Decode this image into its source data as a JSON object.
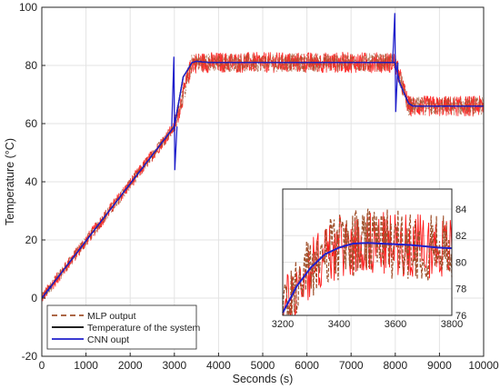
{
  "chart_data": {
    "type": "line",
    "xlabel": "Seconds (s)",
    "ylabel": "Temperature (°C)",
    "xlim": [
      0,
      10000
    ],
    "ylim": [
      -20,
      100
    ],
    "xticks": [
      "0",
      "1000",
      "2000",
      "3000",
      "4000",
      "5000",
      "6000",
      "7000",
      "8000",
      "9000",
      "10000"
    ],
    "yticks": [
      "-20",
      "0",
      "20",
      "40",
      "60",
      "80",
      "100"
    ],
    "grid": true,
    "legend_position": "bottom-left",
    "series": [
      {
        "name": "MLP output",
        "style": "dashed",
        "color": "#a0522d",
        "noise_color": "#ff1a1a",
        "x": [
          0,
          3000,
          3400,
          8000,
          8300,
          10000
        ],
        "y": [
          0,
          59,
          81,
          81,
          66,
          66
        ]
      },
      {
        "name": "Temperature of the system",
        "style": "solid",
        "color": "#000000",
        "x": [
          0,
          3000,
          3200,
          3400,
          3500,
          3800,
          8000,
          8100,
          8300,
          8400,
          10000
        ],
        "y": [
          0,
          59,
          76,
          81,
          81.4,
          81,
          81,
          74,
          67,
          66,
          66
        ]
      },
      {
        "name": "CNN oupt",
        "style": "solid",
        "color": "#1f1fcc",
        "x": [
          0,
          3000,
          3200,
          3400,
          3500,
          3800,
          8000,
          8100,
          8300,
          8400,
          10000
        ],
        "y": [
          0,
          59,
          76,
          81,
          81.4,
          81,
          81,
          74,
          67,
          66,
          66
        ],
        "spikes": [
          {
            "x": 3000,
            "y_high": 83,
            "y_low": 44
          },
          {
            "x": 8000,
            "y_high": 98,
            "y_low": 64
          }
        ]
      }
    ],
    "inset": {
      "xlim": [
        3200,
        3800
      ],
      "ylim": [
        76,
        85.5
      ],
      "xticks": [
        "3200",
        "3400",
        "3600",
        "3800"
      ],
      "yticks": [
        "76",
        "78",
        "80",
        "82",
        "84"
      ],
      "x": [
        3200,
        3250,
        3300,
        3350,
        3400,
        3450,
        3500,
        3550,
        3600,
        3650,
        3700,
        3750,
        3800
      ],
      "y": [
        76.2,
        78.2,
        79.6,
        80.6,
        81.1,
        81.4,
        81.45,
        81.4,
        81.35,
        81.3,
        81.2,
        81.1,
        81.05
      ]
    }
  }
}
